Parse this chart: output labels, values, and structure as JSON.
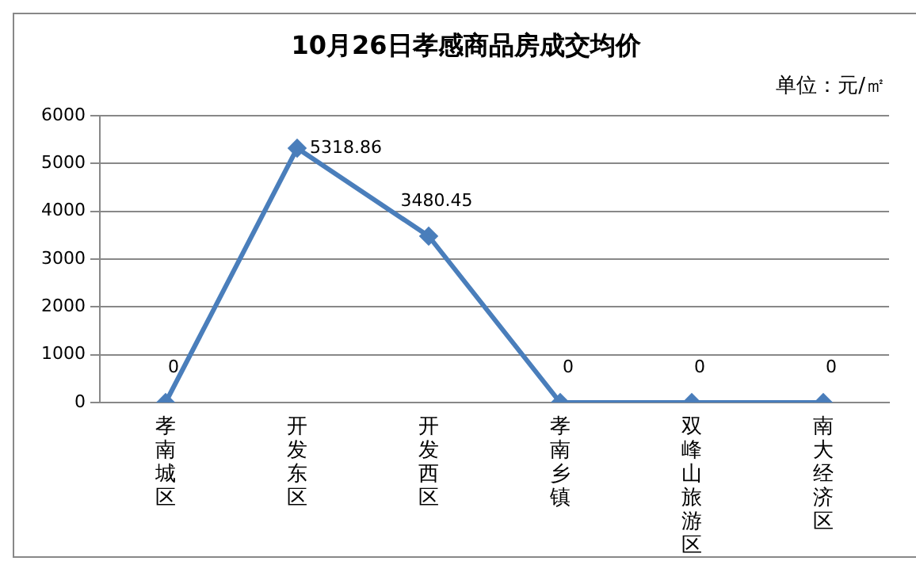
{
  "chart_data": {
    "type": "line",
    "title": "10月26日孝感商品房成交均价",
    "annotations": [
      "单位：元/㎡"
    ],
    "categories": [
      "孝南城区",
      "开发东区",
      "开发西区",
      "孝南乡镇",
      "双峰山旅游区",
      "南大经济区"
    ],
    "series": [
      {
        "color": "#4a7ebb",
        "values": [
          0,
          5318.86,
          3480.45,
          0,
          0,
          0
        ]
      }
    ],
    "ylim": [
      0,
      6000
    ],
    "yticks": [
      0,
      1000,
      2000,
      3000,
      4000,
      5000,
      6000
    ],
    "grid": "y",
    "legend": false,
    "marker": "diamond",
    "line_style": "solid",
    "data_labels": true
  }
}
